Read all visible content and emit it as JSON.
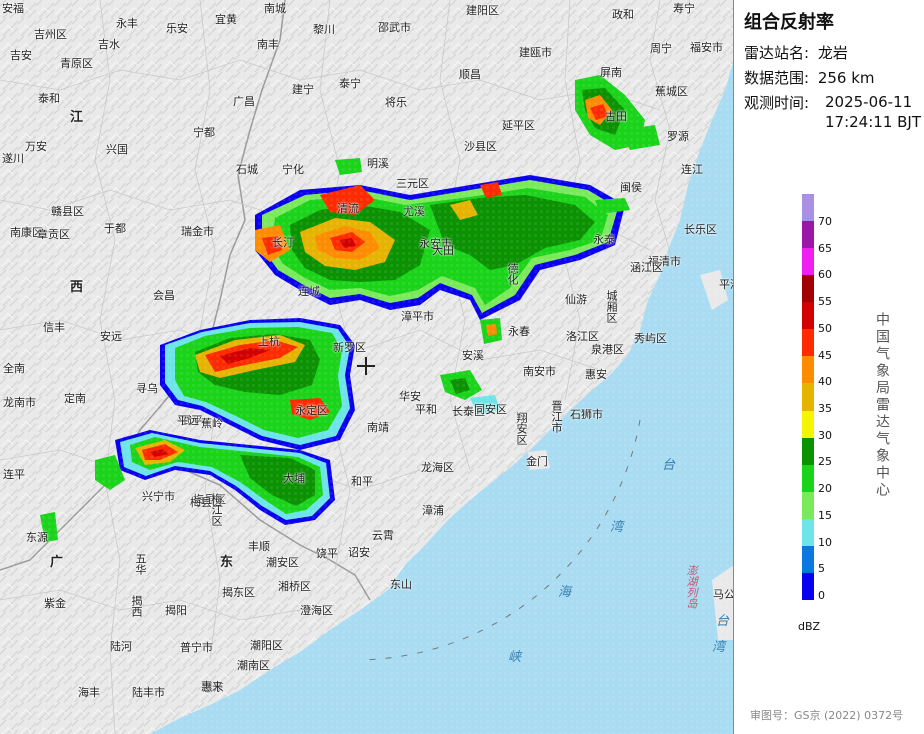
{
  "panel": {
    "title": "组合反射率",
    "station_label": "雷达站名:",
    "station_value": "龙岩",
    "range_label": "数据范围:",
    "range_value": "256 km",
    "time_label": "观测时间:",
    "time_value_line1": "2025-06-11",
    "time_value_line2": "17:24:11 BJT",
    "organization": "中国气象局雷达气象中心",
    "unit": "dBZ",
    "approval": "审图号：GS京 (2022) 0372号"
  },
  "legend": [
    {
      "label": "70",
      "color": "#aa8fe6"
    },
    {
      "label": "65",
      "color": "#9b17a8"
    },
    {
      "label": "60",
      "color": "#f01ef0"
    },
    {
      "label": "55",
      "color": "#a20000"
    },
    {
      "label": "50",
      "color": "#d20000"
    },
    {
      "label": "45",
      "color": "#ff2a00"
    },
    {
      "label": "40",
      "color": "#ff8c00"
    },
    {
      "label": "35",
      "color": "#e6b400"
    },
    {
      "label": "30",
      "color": "#f5f500"
    },
    {
      "label": "25",
      "color": "#0a9200"
    },
    {
      "label": "20",
      "color": "#19d419"
    },
    {
      "label": "15",
      "color": "#7aea5a"
    },
    {
      "label": "10",
      "color": "#6ce4e8"
    },
    {
      "label": "5",
      "color": "#0a78e0"
    },
    {
      "label": "0",
      "color": "#0a00f0"
    }
  ],
  "provinces": [
    {
      "name": "江"
    },
    {
      "name": "西"
    },
    {
      "name": "广"
    },
    {
      "name": "东"
    }
  ],
  "seas": [
    {
      "name": "台"
    },
    {
      "name": "湾"
    },
    {
      "name": "海"
    },
    {
      "name": "峡"
    },
    {
      "name": "台"
    },
    {
      "name": "湾"
    },
    {
      "name": "澎湖列岛"
    }
  ],
  "places": [
    {
      "name": "安福"
    },
    {
      "name": "吉州区"
    },
    {
      "name": "永丰"
    },
    {
      "name": "宜黄"
    },
    {
      "name": "南城"
    },
    {
      "name": "建阳区"
    },
    {
      "name": "政和"
    },
    {
      "name": "寿宁"
    },
    {
      "name": "吉安"
    },
    {
      "name": "青原区"
    },
    {
      "name": "吉水"
    },
    {
      "name": "乐安"
    },
    {
      "name": "南丰"
    },
    {
      "name": "黎川"
    },
    {
      "name": "邵武市"
    },
    {
      "name": "建瓯市"
    },
    {
      "name": "周宁"
    },
    {
      "name": "福安市"
    },
    {
      "name": "泰和"
    },
    {
      "name": "广昌"
    },
    {
      "name": "建宁"
    },
    {
      "name": "泰宁"
    },
    {
      "name": "顺昌"
    },
    {
      "name": "屏南"
    },
    {
      "name": "蕉城区"
    },
    {
      "name": "将乐"
    },
    {
      "name": "延平区"
    },
    {
      "name": "古田"
    },
    {
      "name": "罗源"
    },
    {
      "name": "万安"
    },
    {
      "name": "兴国"
    },
    {
      "name": "宁都"
    },
    {
      "name": "沙县区"
    },
    {
      "name": "宁化"
    },
    {
      "name": "明溪"
    },
    {
      "name": "三元区"
    },
    {
      "name": "尤溪"
    },
    {
      "name": "闽侯"
    },
    {
      "name": "连江"
    },
    {
      "name": "遂川"
    },
    {
      "name": "石城"
    },
    {
      "name": "赣县区"
    },
    {
      "name": "于都"
    },
    {
      "name": "瑞金市"
    },
    {
      "name": "清流"
    },
    {
      "name": "永安市"
    },
    {
      "name": "大田"
    },
    {
      "name": "德化"
    },
    {
      "name": "永泰"
    },
    {
      "name": "长乐区"
    },
    {
      "name": "福清市"
    },
    {
      "name": "南康区"
    },
    {
      "name": "章贡区"
    },
    {
      "name": "长汀"
    },
    {
      "name": "连城"
    },
    {
      "name": "漳平市"
    },
    {
      "name": "仙游"
    },
    {
      "name": "城厢区"
    },
    {
      "name": "涵江区"
    },
    {
      "name": "平潭"
    },
    {
      "name": "会昌"
    },
    {
      "name": "信丰"
    },
    {
      "name": "上杭"
    },
    {
      "name": "新罗区"
    },
    {
      "name": "安溪"
    },
    {
      "name": "永春"
    },
    {
      "name": "南安市"
    },
    {
      "name": "洛江区"
    },
    {
      "name": "泉港区"
    },
    {
      "name": "秀屿区"
    },
    {
      "name": "安远"
    },
    {
      "name": "全南"
    },
    {
      "name": "寻乌"
    },
    {
      "name": "武平"
    },
    {
      "name": "永定区"
    },
    {
      "name": "华安"
    },
    {
      "name": "长泰区"
    },
    {
      "name": "同安区"
    },
    {
      "name": "翔安区"
    },
    {
      "name": "晋江市"
    },
    {
      "name": "石狮市"
    },
    {
      "name": "惠安"
    },
    {
      "name": "龙南市"
    },
    {
      "name": "定南"
    },
    {
      "name": "平远"
    },
    {
      "name": "蕉岭"
    },
    {
      "name": "南靖"
    },
    {
      "name": "龙海区"
    },
    {
      "name": "金门"
    },
    {
      "name": "和平"
    },
    {
      "name": "梅县区"
    },
    {
      "name": "大埔"
    },
    {
      "name": "平和"
    },
    {
      "name": "连平"
    },
    {
      "name": "兴宁市"
    },
    {
      "name": "梅县区"
    },
    {
      "name": "梅江区"
    },
    {
      "name": "漳浦"
    },
    {
      "name": "东源"
    },
    {
      "name": "五华"
    },
    {
      "name": "丰顺"
    },
    {
      "name": "潮安区"
    },
    {
      "name": "饶平"
    },
    {
      "name": "诏安"
    },
    {
      "name": "云霄"
    },
    {
      "name": "东山"
    },
    {
      "name": "紫金"
    },
    {
      "name": "揭东区"
    },
    {
      "name": "湘桥区"
    },
    {
      "name": "澄海区"
    },
    {
      "name": "揭西"
    },
    {
      "name": "普宁市"
    },
    {
      "name": "潮阳区"
    },
    {
      "name": "潮南区"
    },
    {
      "name": "惠东"
    },
    {
      "name": "海丰"
    },
    {
      "name": "陆丰市"
    },
    {
      "name": "惠来"
    },
    {
      "name": "陆河"
    },
    {
      "name": "揭阳"
    },
    {
      "name": "马公"
    }
  ]
}
